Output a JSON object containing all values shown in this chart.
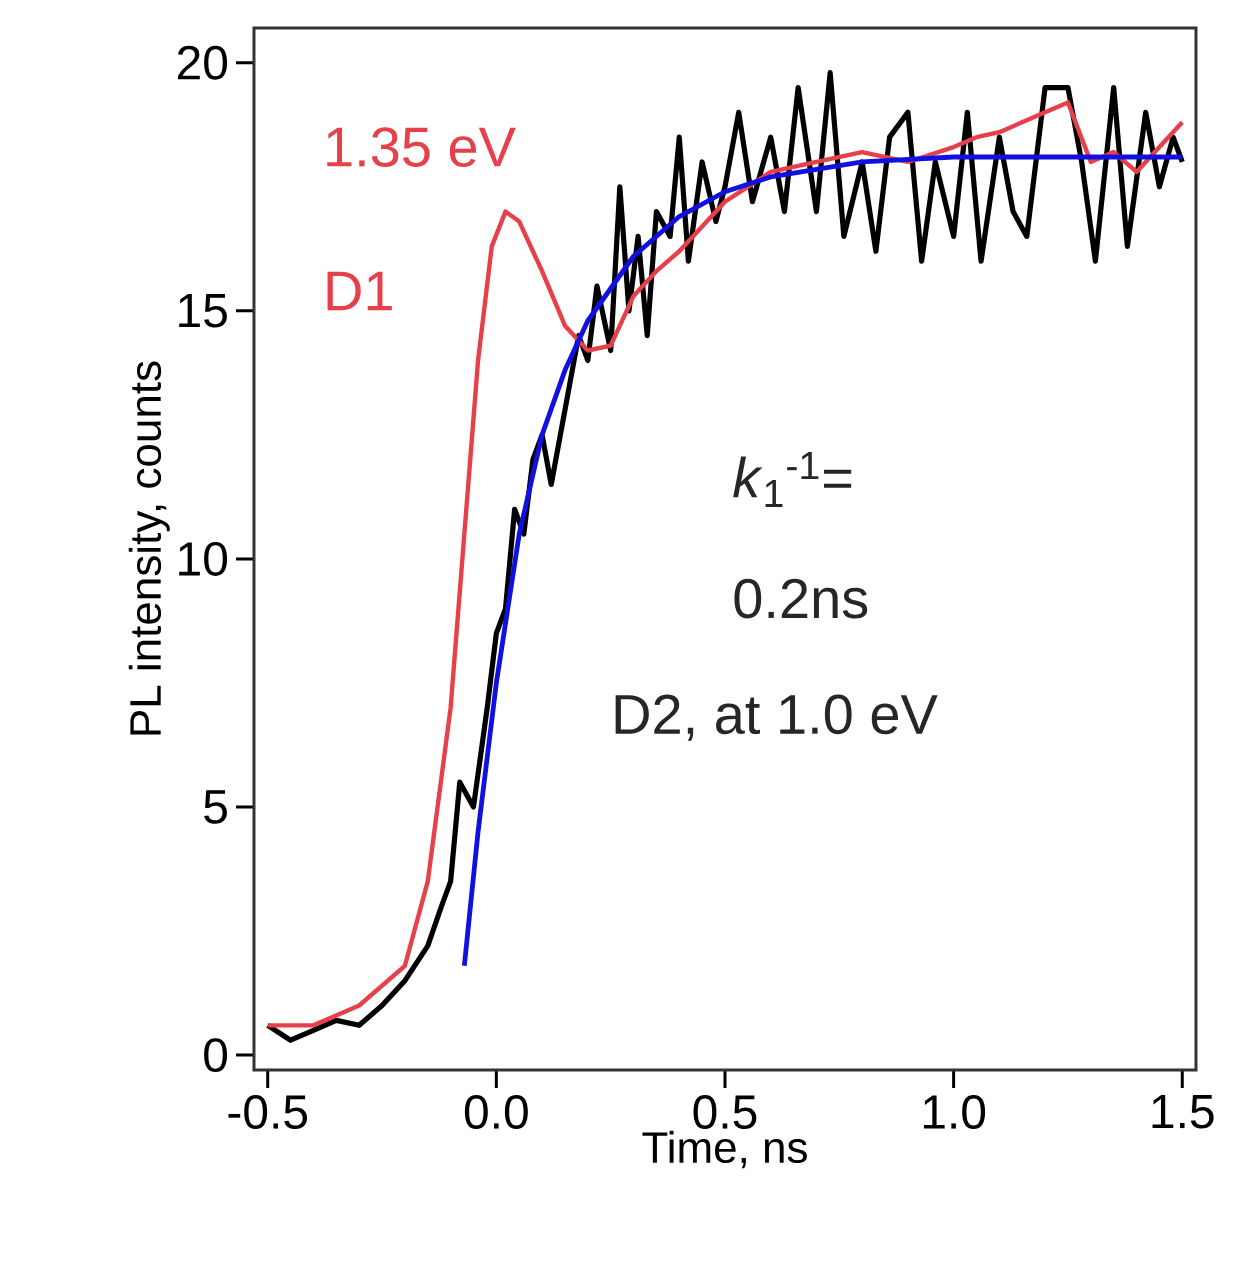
{
  "chart_data": {
    "type": "line",
    "xlabel": "Time,  ns",
    "ylabel": "PL intensity,  counts",
    "xlim": [
      -0.53,
      1.53
    ],
    "ylim": [
      -0.3,
      20.7
    ],
    "xticks": [
      {
        "value": -0.5,
        "label": "-0.5"
      },
      {
        "value": 0,
        "label": "0.0"
      },
      {
        "value": 0.5,
        "label": "0.5"
      },
      {
        "value": 1,
        "label": "1.0"
      },
      {
        "value": 1.5,
        "label": "1.5"
      }
    ],
    "yticks": [
      0,
      5,
      10,
      15,
      20
    ],
    "grid": false,
    "marker": "none",
    "line_style": "solid",
    "series": [
      {
        "color": "#000000",
        "x": [
          -0.5,
          -0.45,
          -0.4,
          -0.35,
          -0.3,
          -0.25,
          -0.2,
          -0.15,
          -0.12,
          -0.1,
          -0.08,
          -0.05,
          -0.02,
          0.0,
          0.02,
          0.04,
          0.06,
          0.08,
          0.1,
          0.12,
          0.15,
          0.18,
          0.2,
          0.22,
          0.25,
          0.27,
          0.29,
          0.31,
          0.33,
          0.35,
          0.38,
          0.4,
          0.42,
          0.45,
          0.48,
          0.5,
          0.53,
          0.56,
          0.6,
          0.63,
          0.66,
          0.7,
          0.73,
          0.76,
          0.8,
          0.83,
          0.86,
          0.9,
          0.93,
          0.96,
          1.0,
          1.03,
          1.06,
          1.1,
          1.13,
          1.16,
          1.2,
          1.25,
          1.28,
          1.31,
          1.35,
          1.38,
          1.42,
          1.45,
          1.48,
          1.5
        ],
        "values": [
          0.6,
          0.3,
          0.5,
          0.7,
          0.6,
          1.0,
          1.5,
          2.2,
          3.0,
          3.5,
          5.5,
          5.0,
          7,
          8.5,
          9.0,
          11,
          10.5,
          12,
          12.5,
          11.5,
          13,
          14.5,
          14,
          15.5,
          14.2,
          17.5,
          15,
          16.5,
          14.5,
          17,
          16.5,
          18.5,
          16,
          18,
          16.8,
          17.5,
          19,
          17.2,
          18.5,
          17,
          19.5,
          17,
          19.8,
          16.5,
          18,
          16.2,
          18.5,
          19,
          16,
          18,
          16.5,
          19,
          16,
          18.5,
          17,
          16.5,
          19.5,
          19.5,
          18,
          16,
          19.5,
          16.3,
          19,
          17.5,
          18.5,
          18
        ]
      },
      {
        "color": "#e8404a",
        "x": [
          -0.5,
          -0.4,
          -0.3,
          -0.2,
          -0.15,
          -0.1,
          -0.07,
          -0.04,
          -0.01,
          0.02,
          0.05,
          0.1,
          0.15,
          0.2,
          0.25,
          0.3,
          0.35,
          0.4,
          0.5,
          0.6,
          0.7,
          0.8,
          0.9,
          1.0,
          1.05,
          1.1,
          1.2,
          1.25,
          1.3,
          1.35,
          1.4,
          1.45,
          1.5
        ],
        "values": [
          0.6,
          0.6,
          1.0,
          1.8,
          3.5,
          7,
          10.5,
          14,
          16.3,
          17,
          16.8,
          15.8,
          14.7,
          14.2,
          14.3,
          15.3,
          15.8,
          16.2,
          17.2,
          17.8,
          18.0,
          18.2,
          18.0,
          18.3,
          18.5,
          18.6,
          19.0,
          19.2,
          18.0,
          18.2,
          17.8,
          18.3,
          18.8
        ]
      },
      {
        "color": "#1010e0",
        "x": [
          -0.07,
          -0.04,
          0.0,
          0.05,
          0.1,
          0.15,
          0.2,
          0.3,
          0.4,
          0.5,
          0.6,
          0.8,
          1.0,
          1.2,
          1.5
        ],
        "values": [
          1.8,
          4.5,
          7.5,
          10.5,
          12.5,
          13.8,
          14.8,
          16.1,
          16.9,
          17.4,
          17.7,
          18.0,
          18.1,
          18.1,
          18.1
        ]
      }
    ],
    "annotations": [
      "1.35 eV",
      "D1",
      "*k*$_{1}$$^{-1}$=",
      "0.2ns",
      "D2, at 1.0 eV"
    ]
  }
}
